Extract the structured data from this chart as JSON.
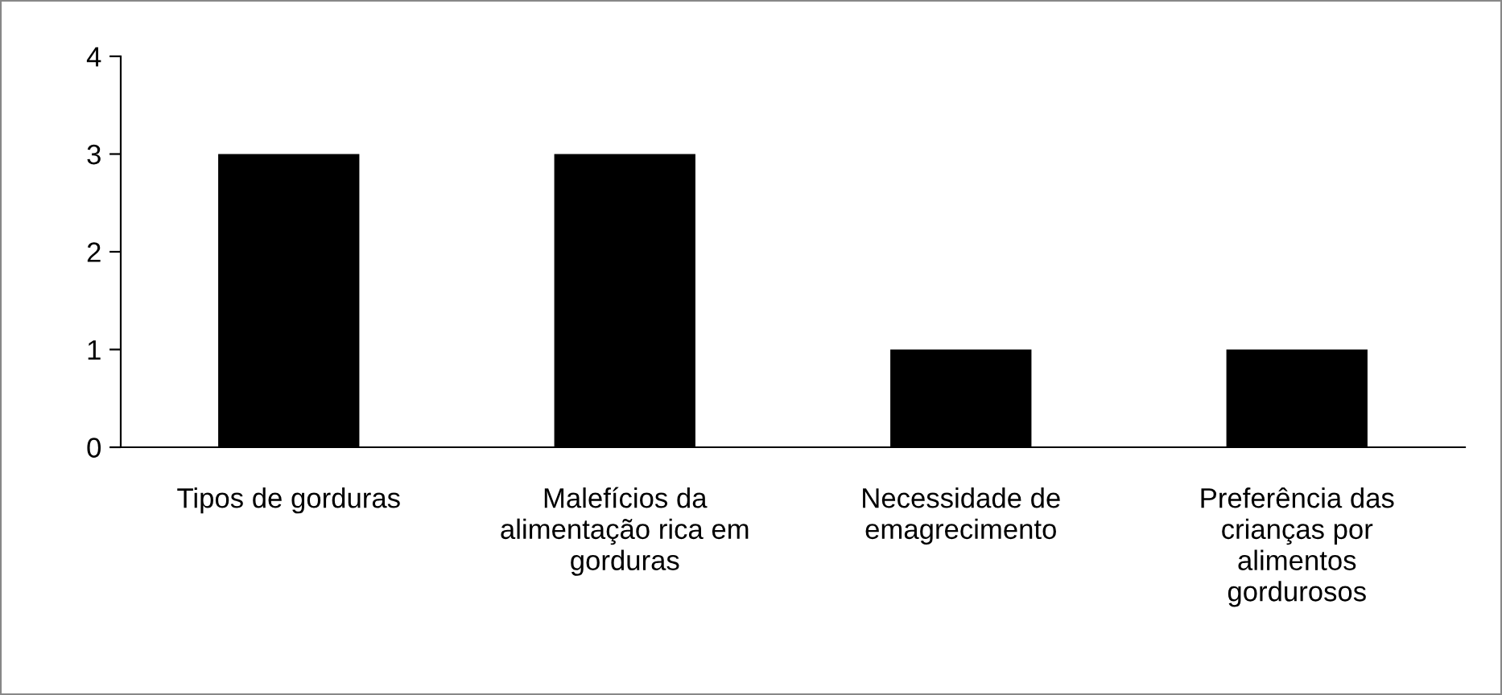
{
  "chart_data": {
    "type": "bar",
    "categories": [
      "Tipos de gorduras",
      "Malefícios da\nalimentação rica em\ngorduras",
      "Necessidade de\nemagrecimento",
      "Preferência das\ncrianças por\nalimentos\ngordurosos"
    ],
    "values": [
      3,
      3,
      1,
      1
    ],
    "color": "#000000",
    "ylim": [
      0,
      4
    ],
    "yticks": [
      0,
      1,
      2,
      3,
      4
    ],
    "grid": false,
    "legend": false
  }
}
